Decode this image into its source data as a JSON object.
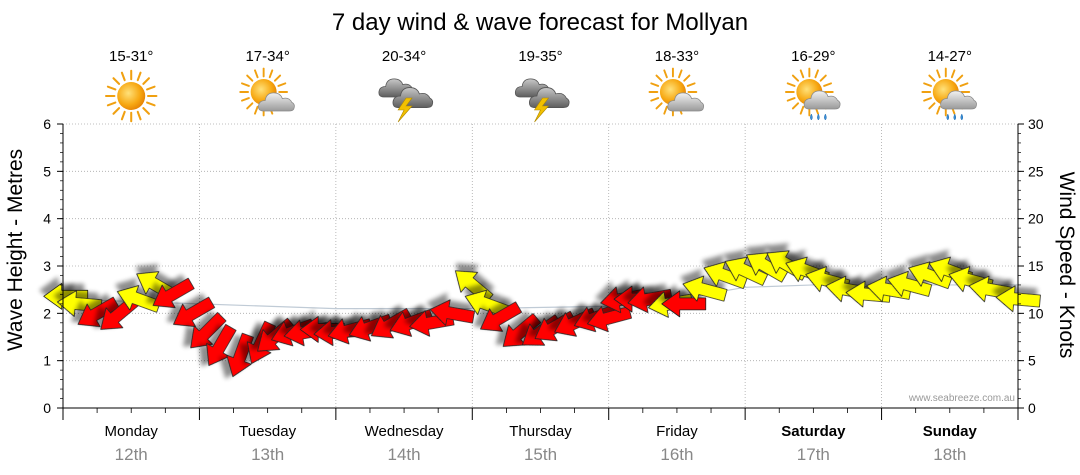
{
  "chart_data": {
    "type": "line",
    "title": "7 day wind & wave forecast for Mollyan",
    "ylabel_left": "Wave Height - Metres",
    "ylabel_right": "Wind Speed - Knots",
    "ylim_left": [
      0,
      6
    ],
    "ylim_right": [
      0,
      30
    ],
    "yticks_left": [
      "0",
      "1",
      "2",
      "3",
      "4",
      "5",
      "6"
    ],
    "yticks_right": [
      "0",
      "5",
      "10",
      "15",
      "20",
      "25",
      "30"
    ],
    "watermark": "www.seabreeze.com.au",
    "days": [
      {
        "name": "Monday",
        "date": "12th",
        "temp": "15-31°",
        "icon": "sun-icon",
        "bold": false
      },
      {
        "name": "Tuesday",
        "date": "13th",
        "temp": "17-34°",
        "icon": "sun-cloud-icon",
        "bold": false
      },
      {
        "name": "Wednesday",
        "date": "14th",
        "temp": "20-34°",
        "icon": "storm-icon",
        "bold": false
      },
      {
        "name": "Thursday",
        "date": "15th",
        "temp": "19-35°",
        "icon": "storm-icon",
        "bold": false
      },
      {
        "name": "Friday",
        "date": "16th",
        "temp": "18-33°",
        "icon": "sun-cloud-icon",
        "bold": false
      },
      {
        "name": "Saturday",
        "date": "17th",
        "temp": "16-29°",
        "icon": "sun-shower-icon",
        "bold": true
      },
      {
        "name": "Sunday",
        "date": "18th",
        "temp": "14-27°",
        "icon": "sun-shower-icon",
        "bold": true
      }
    ],
    "series": [
      {
        "name": "Wind speed (knots)",
        "x_days": [
          0.02,
          0.12,
          0.25,
          0.4,
          0.55,
          0.68,
          0.8,
          0.95,
          1.05,
          1.15,
          1.3,
          1.45,
          1.55,
          1.68,
          1.78,
          1.9,
          2.0,
          2.1,
          2.25,
          2.4,
          2.55,
          2.7,
          2.85,
          3.0,
          3.1,
          3.2,
          3.35,
          3.5,
          3.6,
          3.75,
          3.9,
          4.0,
          4.1,
          4.2,
          4.3,
          4.45,
          4.55,
          4.7,
          4.85,
          5.0,
          5.15,
          5.3,
          5.45,
          5.6,
          5.75,
          5.9,
          6.05,
          6.2,
          6.35,
          6.5,
          6.65,
          6.8,
          7.0
        ],
        "knots": [
          11.8,
          11.0,
          10.0,
          9.8,
          11.5,
          13.0,
          12.0,
          10.0,
          8.0,
          6.5,
          5.5,
          6.8,
          7.5,
          8.0,
          8.0,
          8.3,
          8.0,
          8.2,
          8.5,
          8.8,
          9.0,
          9.0,
          10.0,
          13.0,
          11.0,
          9.5,
          8.0,
          8.0,
          8.5,
          9.0,
          9.5,
          9.5,
          11.5,
          11.5,
          11.5,
          11.0,
          11.0,
          12.5,
          14.0,
          14.5,
          15.0,
          15.2,
          14.5,
          13.5,
          12.5,
          12.0,
          12.5,
          13.0,
          14.0,
          14.5,
          13.5,
          12.5,
          11.5
        ],
        "colors": [
          "#ffff00",
          "#ffff00",
          "#ff0000",
          "#ff0000",
          "#ffff00",
          "#ffff00",
          "#ff0000",
          "#ff0000",
          "#ff0000",
          "#ff0000",
          "#ff0000",
          "#ff0000",
          "#ff0000",
          "#ff0000",
          "#ff0000",
          "#ff0000",
          "#ff0000",
          "#ff0000",
          "#ff0000",
          "#ff0000",
          "#ff0000",
          "#ff0000",
          "#ff0000",
          "#ffff00",
          "#ffff00",
          "#ff0000",
          "#ff0000",
          "#ff0000",
          "#ff0000",
          "#ff0000",
          "#ff0000",
          "#ff0000",
          "#ff0000",
          "#ff0000",
          "#ff0000",
          "#ffff00",
          "#ff0000",
          "#ffff00",
          "#ffff00",
          "#ffff00",
          "#ffff00",
          "#ffff00",
          "#ffff00",
          "#ffff00",
          "#ffff00",
          "#ffff00",
          "#ffff00",
          "#ffff00",
          "#ffff00",
          "#ffff00",
          "#ffff00",
          "#ffff00",
          "#ffff00"
        ],
        "arrow_angles_deg": [
          180,
          185,
          150,
          140,
          200,
          210,
          150,
          150,
          135,
          120,
          110,
          115,
          140,
          160,
          170,
          180,
          175,
          165,
          160,
          150,
          160,
          170,
          190,
          220,
          200,
          150,
          140,
          145,
          150,
          155,
          160,
          165,
          170,
          180,
          170,
          170,
          180,
          195,
          200,
          205,
          210,
          210,
          200,
          195,
          190,
          185,
          190,
          195,
          200,
          200,
          195,
          190,
          185
        ]
      },
      {
        "name": "Wave height (m)",
        "x_days": [
          0.0,
          1.0,
          2.0,
          3.0,
          4.0,
          4.5,
          5.0,
          5.5,
          6.0,
          6.5,
          7.0
        ],
        "metres": [
          2.3,
          2.2,
          2.1,
          2.1,
          2.15,
          2.3,
          2.55,
          2.6,
          2.6,
          2.6,
          2.6
        ]
      }
    ]
  }
}
